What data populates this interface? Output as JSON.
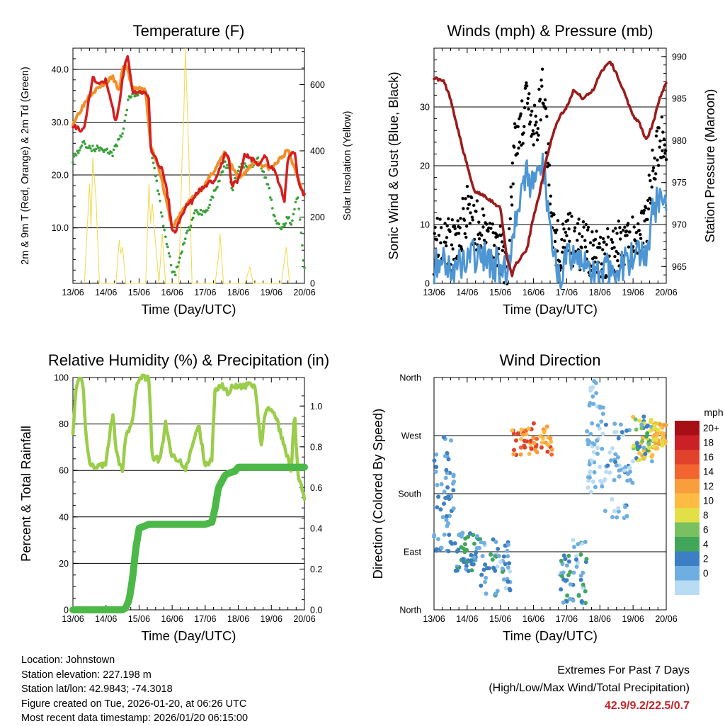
{
  "chart_data": [
    {
      "type": "line",
      "title": "Temperature (F)",
      "xlabel": "Time (Day/UTC)",
      "ylabel": "2m & 9m T (Red, Orange) & 2m Td (Green)",
      "y2label": "Solar Insolation (Yellow)",
      "x_ticks": [
        "13/06",
        "14/06",
        "15/06",
        "16/06",
        "17/06",
        "18/06",
        "19/06",
        "20/06"
      ],
      "xlim": [
        0,
        7
      ],
      "ylim": [
        -0.5,
        44
      ],
      "y_ticks": [
        10.0,
        20.0,
        30.0,
        40.0
      ],
      "y2lim": [
        0,
        710
      ],
      "y2_ticks": [
        0,
        200,
        400,
        600
      ],
      "series": [
        {
          "name": "2m T",
          "color": "#d42020",
          "x": [
            0,
            0.2,
            0.35,
            0.5,
            0.6,
            0.8,
            1.0,
            1.1,
            1.3,
            1.4,
            1.5,
            1.65,
            1.8,
            2.0,
            2.2,
            2.3,
            2.35,
            2.5,
            2.7,
            2.9,
            3.0,
            3.1,
            3.2,
            3.4,
            3.6,
            3.8,
            4.0,
            4.3,
            4.6,
            4.7,
            4.8,
            5.0,
            5.2,
            5.4,
            5.6,
            5.8,
            5.9,
            6.1,
            6.3,
            6.4,
            6.5,
            6.7,
            6.8,
            7.0
          ],
          "values": [
            29.5,
            28.5,
            29,
            35,
            38.5,
            37,
            38,
            35,
            30,
            33,
            38,
            43,
            36,
            35.5,
            35.5,
            34.5,
            25,
            23,
            21,
            15,
            9.5,
            9.0,
            11,
            14,
            15,
            17,
            18,
            19,
            24,
            24,
            18,
            19,
            24,
            23,
            22,
            24,
            22,
            21,
            17,
            15,
            23,
            24.5,
            19,
            16
          ]
        },
        {
          "name": "9m T",
          "color": "#f0902a",
          "x": [
            0,
            0.5,
            1.2,
            1.4,
            1.5,
            1.6,
            1.8,
            2.2,
            2.35,
            2.6,
            3.0,
            3.4,
            4.0,
            4.6,
            5.0,
            5.5,
            6.0,
            6.5,
            7.0
          ],
          "values": [
            29.8,
            35.2,
            38.5,
            36,
            40,
            41,
            36.5,
            36,
            25.5,
            21.5,
            10,
            14.2,
            18.2,
            24.2,
            19.2,
            22.5,
            21.2,
            24.7,
            16.2
          ]
        },
        {
          "name": "2m Td",
          "color": "#3aa03a",
          "x": [
            0,
            0.3,
            0.6,
            0.9,
            1.2,
            1.5,
            1.7,
            1.9,
            2.1,
            2.3,
            2.35,
            2.5,
            2.7,
            2.9,
            3.0,
            3.1,
            3.2,
            3.4,
            3.7,
            4.0,
            4.3,
            4.5,
            4.6,
            4.7,
            4.8,
            5.0,
            5.2,
            5.4,
            5.6,
            5.9,
            6.1,
            6.3,
            6.5,
            6.6,
            6.8,
            7.0
          ],
          "values": [
            23,
            26,
            25,
            25,
            24,
            28,
            35,
            35,
            36,
            34.5,
            25,
            20,
            12,
            5,
            2,
            1,
            4,
            8,
            13,
            13,
            17,
            20,
            22,
            21,
            17,
            21,
            22,
            22,
            23,
            18,
            12,
            10,
            12,
            11,
            16,
            2
          ]
        }
      ],
      "insolation": {
        "name": "Solar Insolation",
        "color": "#f2d84a",
        "x": [
          0.35,
          0.5,
          0.55,
          0.6,
          0.7,
          0.75,
          0.8,
          1.3,
          1.4,
          1.45,
          1.5,
          1.6,
          2.2,
          2.3,
          2.35,
          2.4,
          2.6,
          2.7,
          2.8,
          3.2,
          3.3,
          3.35,
          3.4,
          3.5,
          3.55,
          3.6,
          4.3,
          4.4,
          4.45,
          4.55,
          5.2,
          5.35,
          5.45,
          6.3,
          6.45,
          6.55
        ],
        "values": [
          0,
          300,
          170,
          380,
          250,
          130,
          0,
          0,
          130,
          90,
          110,
          0,
          0,
          300,
          180,
          240,
          0,
          150,
          0,
          0,
          380,
          500,
          710,
          400,
          200,
          0,
          0,
          80,
          150,
          0,
          0,
          50,
          0,
          0,
          110,
          0
        ]
      }
    },
    {
      "type": "scatter",
      "title": "Winds (mph) & Pressure (mb)",
      "xlabel": "Time (Day/UTC)",
      "ylabel": "Sonic Wind & Gust (Blue, Black)",
      "y2label": "Station Pressure (Maroon)",
      "x_ticks": [
        "13/06",
        "14/06",
        "15/06",
        "16/06",
        "17/06",
        "18/06",
        "19/06",
        "20/06"
      ],
      "xlim": [
        0,
        7
      ],
      "ylim": [
        0,
        40
      ],
      "y_ticks": [
        0,
        10,
        20,
        30
      ],
      "y2lim": [
        963,
        991
      ],
      "y2_ticks": [
        965,
        970,
        975,
        980,
        985,
        990
      ],
      "series": [
        {
          "name": "Sonic Wind",
          "color": "#4e96d3",
          "x": [
            0,
            0.3,
            0.6,
            1.0,
            1.5,
            2.0,
            2.2,
            2.4,
            2.6,
            2.8,
            3.0,
            3.3,
            3.6,
            3.8,
            4.0,
            4.5,
            5.0,
            5.5,
            6.0,
            6.4,
            6.6,
            6.8,
            7.0
          ],
          "values": [
            3,
            4,
            2,
            5,
            4,
            3,
            1,
            10,
            15,
            18,
            16,
            20,
            5,
            2,
            4,
            3,
            2,
            3,
            4,
            5,
            12,
            15,
            14
          ]
        },
        {
          "name": "Gust",
          "color": "#000000",
          "x": [
            0,
            0.3,
            0.6,
            1.0,
            1.5,
            2.0,
            2.2,
            2.4,
            2.6,
            2.8,
            3.0,
            3.3,
            3.6,
            3.8,
            4.0,
            4.5,
            5.0,
            5.5,
            6.0,
            6.4,
            6.6,
            6.8,
            7.0
          ],
          "values": [
            6,
            8,
            6,
            12,
            8,
            6,
            3,
            22,
            27,
            30,
            25,
            33,
            9,
            5,
            8,
            6,
            5,
            6,
            7,
            10,
            20,
            24,
            25
          ]
        },
        {
          "name": "Station Pressure",
          "color": "#9b1c1c",
          "x": [
            0,
            0.3,
            0.5,
            0.8,
            1.0,
            1.2,
            1.5,
            2.0,
            2.2,
            2.35,
            2.5,
            2.8,
            3.0,
            3.2,
            3.4,
            3.6,
            3.8,
            4.0,
            4.2,
            4.5,
            4.8,
            5.0,
            5.3,
            5.5,
            5.7,
            6.0,
            6.2,
            6.4,
            6.6,
            6.8,
            7.0
          ],
          "values": [
            987.5,
            987,
            985,
            980,
            977,
            974,
            973.5,
            972,
            966,
            964,
            965.5,
            967,
            971,
            974,
            978,
            981,
            983,
            984,
            986,
            985,
            986,
            988,
            989.5,
            988,
            986,
            983,
            982,
            980,
            982,
            985,
            987
          ]
        }
      ]
    },
    {
      "type": "line",
      "title": "Relative Humidity (%) & Precipitation (in)",
      "xlabel": "Time (Day/UTC)",
      "ylabel": "Percent & Total Rainfall",
      "x_ticks": [
        "13/06",
        "14/06",
        "15/06",
        "16/06",
        "17/06",
        "18/06",
        "19/06",
        "20/06"
      ],
      "xlim": [
        0,
        7
      ],
      "ylim": [
        0,
        100
      ],
      "y_ticks": [
        0,
        20,
        40,
        60,
        80,
        100
      ],
      "y2lim": [
        0,
        1.14
      ],
      "y2_ticks": [
        "0.0",
        "0.2",
        "0.4",
        "0.6",
        "0.8",
        "1.0"
      ],
      "series": [
        {
          "name": "Relative Humidity",
          "color": "#9acd4a",
          "x": [
            0,
            0.1,
            0.2,
            0.3,
            0.4,
            0.5,
            0.6,
            0.8,
            1.0,
            1.2,
            1.3,
            1.4,
            1.5,
            1.6,
            1.8,
            1.9,
            2.0,
            2.1,
            2.2,
            2.3,
            2.4,
            2.5,
            2.6,
            2.7,
            2.8,
            3.0,
            3.2,
            3.4,
            3.6,
            3.8,
            4.0,
            4.2,
            4.3,
            4.5,
            4.7,
            4.8,
            5.0,
            5.2,
            5.3,
            5.5,
            5.7,
            5.8,
            6.0,
            6.2,
            6.4,
            6.5,
            6.6,
            6.7,
            6.8,
            7.0
          ],
          "values": [
            77,
            95,
            99,
            98,
            75,
            63,
            62,
            62,
            63,
            85,
            70,
            62,
            60,
            75,
            80,
            95,
            100,
            100,
            100,
            100,
            65,
            66,
            64,
            70,
            80,
            66,
            65,
            60,
            70,
            80,
            62,
            65,
            95,
            97,
            93,
            97,
            96,
            96,
            97,
            96,
            70,
            85,
            87,
            80,
            70,
            65,
            60,
            85,
            58,
            48
          ]
        },
        {
          "name": "Total Rainfall",
          "color": "#4cb848",
          "x": [
            0,
            0.5,
            1.0,
            1.5,
            1.6,
            1.7,
            1.8,
            1.9,
            2.0,
            2.3,
            3.0,
            3.5,
            4.0,
            4.2,
            4.3,
            4.4,
            4.6,
            4.7,
            4.9,
            5.0,
            5.5,
            6.0,
            6.5,
            7.0
          ],
          "values": [
            0,
            0,
            0,
            0,
            0.01,
            0.05,
            0.15,
            0.3,
            0.4,
            0.42,
            0.42,
            0.42,
            0.42,
            0.43,
            0.5,
            0.6,
            0.66,
            0.67,
            0.68,
            0.7,
            0.7,
            0.7,
            0.7,
            0.7
          ]
        }
      ]
    },
    {
      "type": "scatter",
      "title": "Wind Direction",
      "xlabel": "Time (Day/UTC)",
      "ylabel": "Direction (Colored By Speed)",
      "x_ticks": [
        "13/06",
        "14/06",
        "15/06",
        "16/06",
        "17/06",
        "18/06",
        "19/06",
        "20/06"
      ],
      "xlim": [
        0,
        7
      ],
      "ylim": [
        0,
        360
      ],
      "y_tick_labels": [
        "North",
        "East",
        "South",
        "West",
        "North"
      ],
      "colorbar_title": "mph",
      "colorbar_labels": [
        "20+",
        "18",
        "16",
        "14",
        "12",
        "10",
        "8",
        "6",
        "4",
        "2",
        "0"
      ],
      "colorbar_colors": [
        "#a50f15",
        "#cb2027",
        "#e0422b",
        "#f26530",
        "#f99e3c",
        "#fdbb44",
        "#e2e046",
        "#78c060",
        "#41a65a",
        "#3d7fc4",
        "#6faee0",
        "#b8dcf3"
      ],
      "clusters": [
        {
          "x": [
            0.0,
            0.6
          ],
          "dir": [
            90,
            270
          ],
          "speed": [
            2,
            6
          ]
        },
        {
          "x": [
            0.6,
            1.4
          ],
          "dir": [
            60,
            120
          ],
          "speed": [
            2,
            8
          ]
        },
        {
          "x": [
            1.4,
            2.3
          ],
          "dir": [
            20,
            110
          ],
          "speed": [
            1,
            7
          ]
        },
        {
          "x": [
            2.3,
            3.6
          ],
          "dir": [
            240,
            290
          ],
          "speed": [
            12,
            20
          ]
        },
        {
          "x": [
            3.8,
            4.6
          ],
          "dir": [
            10,
            110
          ],
          "speed": [
            1,
            8
          ]
        },
        {
          "x": [
            4.6,
            5.1
          ],
          "dir": [
            180,
            360
          ],
          "speed": [
            1,
            4
          ]
        },
        {
          "x": [
            5.1,
            6.0
          ],
          "dir": [
            140,
            290
          ],
          "speed": [
            1,
            5
          ]
        },
        {
          "x": [
            6.0,
            6.6
          ],
          "dir": [
            230,
            300
          ],
          "speed": [
            3,
            14
          ]
        },
        {
          "x": [
            6.6,
            7.0
          ],
          "dir": [
            250,
            290
          ],
          "speed": [
            10,
            16
          ]
        }
      ]
    }
  ],
  "station": {
    "location": "Location: Johnstown",
    "elevation": "Station elevation: 227.198 m",
    "latlon": "Station lat/lon: 42.9843; -74.3018",
    "created": "Figure created on Tue, 2026-01-20, at 06:26 UTC",
    "recent": "Most recent data timestamp: 2026/01/20 06:15:00"
  },
  "extremes": {
    "title": "Extremes For Past 7 Days",
    "subtitle": "(High/Low/Max Wind/Total Precipitation)",
    "values": "42.9/9.2/22.5/0.7"
  }
}
